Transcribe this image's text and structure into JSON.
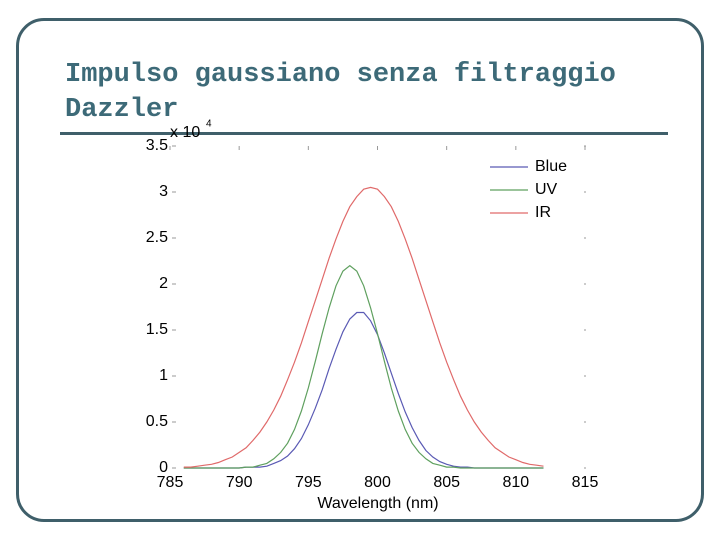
{
  "slide": {
    "title": "Impulso gaussiano senza filtraggio Dazzler"
  },
  "chart_data": {
    "type": "line",
    "x_label": "Wavelength  (nm)",
    "y_multiplier": {
      "base": "x 10",
      "exponent": "4"
    },
    "x": [
      786,
      786.5,
      787,
      787.5,
      788,
      788.5,
      789,
      789.5,
      790,
      790.5,
      791,
      791.5,
      792,
      792.5,
      793,
      793.5,
      794,
      794.5,
      795,
      795.5,
      796,
      796.5,
      797,
      797.5,
      798,
      798.5,
      799,
      799.5,
      800,
      800.5,
      801,
      801.5,
      802,
      802.5,
      803,
      803.5,
      804,
      804.5,
      805,
      805.5,
      806,
      806.5,
      807,
      807.5,
      808,
      808.5,
      809,
      809.5,
      810,
      810.5,
      811,
      811.5,
      812
    ],
    "series": [
      {
        "name": "Blue",
        "color": "#5a5ab4",
        "values": [
          0,
          0,
          0,
          0,
          0,
          0,
          0,
          0,
          0,
          0.01,
          0.01,
          0.01,
          0.02,
          0.05,
          0.08,
          0.13,
          0.21,
          0.32,
          0.47,
          0.65,
          0.85,
          1.08,
          1.29,
          1.48,
          1.62,
          1.69,
          1.69,
          1.6,
          1.45,
          1.25,
          1.03,
          0.81,
          0.61,
          0.44,
          0.3,
          0.19,
          0.12,
          0.07,
          0.04,
          0.02,
          0.01,
          0.01,
          0,
          0,
          0,
          0,
          0,
          0,
          0,
          0,
          0,
          0,
          0
        ]
      },
      {
        "name": "UV",
        "color": "#5fa05f",
        "values": [
          0,
          0,
          0,
          0,
          0,
          0,
          0,
          0,
          0,
          0.01,
          0.01,
          0.03,
          0.05,
          0.1,
          0.17,
          0.27,
          0.42,
          0.62,
          0.87,
          1.16,
          1.46,
          1.74,
          1.98,
          2.14,
          2.2,
          2.14,
          1.98,
          1.74,
          1.46,
          1.16,
          0.87,
          0.62,
          0.42,
          0.27,
          0.17,
          0.1,
          0.05,
          0.03,
          0.01,
          0.01,
          0,
          0,
          0,
          0,
          0,
          0,
          0,
          0,
          0,
          0,
          0,
          0,
          0
        ]
      },
      {
        "name": "IR",
        "color": "#e06a6a",
        "values": [
          0.01,
          0.01,
          0.02,
          0.03,
          0.04,
          0.06,
          0.09,
          0.12,
          0.17,
          0.22,
          0.3,
          0.39,
          0.5,
          0.63,
          0.78,
          0.96,
          1.15,
          1.36,
          1.59,
          1.82,
          2.05,
          2.28,
          2.49,
          2.68,
          2.84,
          2.95,
          3.03,
          3.05,
          3.03,
          2.95,
          2.84,
          2.68,
          2.49,
          2.28,
          2.05,
          1.82,
          1.59,
          1.36,
          1.15,
          0.96,
          0.78,
          0.63,
          0.5,
          0.39,
          0.3,
          0.22,
          0.17,
          0.12,
          0.09,
          0.06,
          0.04,
          0.03,
          0.02
        ]
      }
    ],
    "xlim": [
      785,
      815
    ],
    "xticks": [
      785,
      790,
      795,
      800,
      805,
      810,
      815
    ],
    "ylim": [
      0,
      3.5
    ],
    "yticks": [
      0,
      0.5,
      1,
      1.5,
      2,
      2.5,
      3,
      3.5
    ],
    "legend": "top-right"
  }
}
